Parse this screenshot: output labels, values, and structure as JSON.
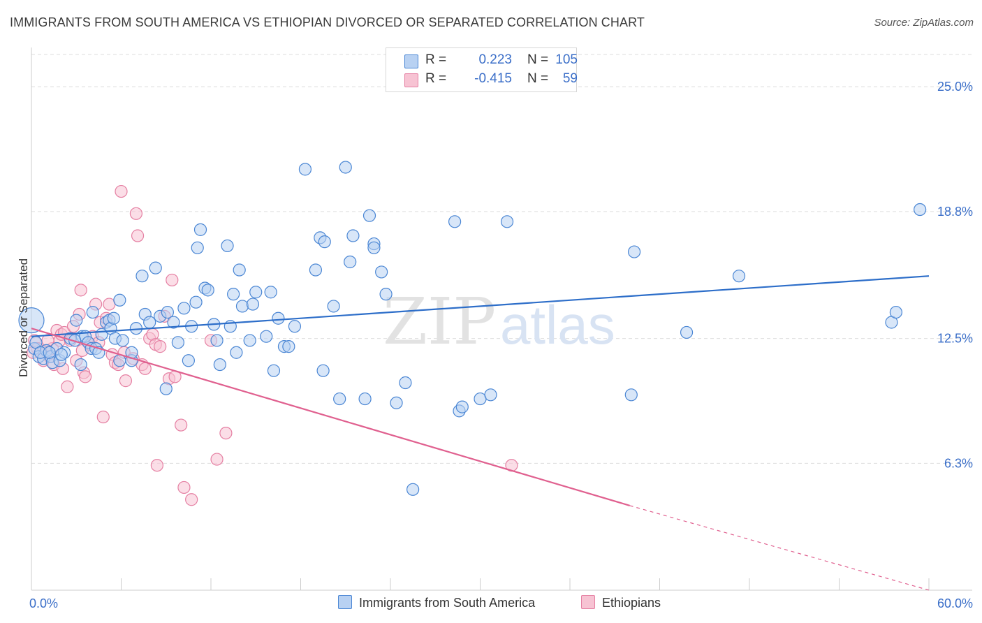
{
  "title": "IMMIGRANTS FROM SOUTH AMERICA VS ETHIOPIAN DIVORCED OR SEPARATED CORRELATION CHART",
  "source": "Source: ZipAtlas.com",
  "watermark": {
    "zip": "ZIP",
    "atlas": "atlas"
  },
  "legend": {
    "rows": [
      {
        "r_label": "R =",
        "r_value": "0.223",
        "n_label": "N =",
        "n_value": "105"
      },
      {
        "r_label": "R =",
        "r_value": "-0.415",
        "n_label": "N =",
        "n_value": "59"
      }
    ]
  },
  "bottom_legend": [
    "Immigrants from South America",
    "Ethiopians"
  ],
  "colors": {
    "blue_fill": "#b8d1f2",
    "blue_stroke": "#4a86d4",
    "blue_line": "#2d6ec9",
    "pink_fill": "#f7c3d3",
    "pink_stroke": "#e57fa2",
    "pink_line": "#e0608f",
    "grid": "#dddddd",
    "tick_label": "#3a6ec8"
  },
  "chart_data": {
    "type": "scatter",
    "title": "IMMIGRANTS FROM SOUTH AMERICA VS ETHIOPIAN DIVORCED OR SEPARATED CORRELATION CHART",
    "xlabel": "",
    "ylabel": "Divorced or Separated",
    "xlim": [
      0,
      60
    ],
    "ylim": [
      0,
      26.6
    ],
    "x_tick_labels": [
      {
        "value": 0,
        "label": "0.0%"
      },
      {
        "value": 60,
        "label": "60.0%"
      }
    ],
    "y_tick_labels": [
      {
        "value": 6.3,
        "label": "6.3%"
      },
      {
        "value": 12.5,
        "label": "12.5%"
      },
      {
        "value": 18.8,
        "label": "18.8%"
      },
      {
        "value": 25.0,
        "label": "25.0%"
      }
    ],
    "series": [
      {
        "name": "Immigrants from South America",
        "R": 0.223,
        "N": 105,
        "trend": {
          "x": [
            0,
            60
          ],
          "y": [
            12.6,
            15.6
          ]
        },
        "points": [
          [
            0.0,
            13.4
          ],
          [
            0.2,
            12.0
          ],
          [
            0.5,
            11.6
          ],
          [
            0.8,
            11.5
          ],
          [
            1.0,
            11.9
          ],
          [
            1.3,
            11.6
          ],
          [
            1.4,
            11.3
          ],
          [
            1.7,
            12.0
          ],
          [
            1.9,
            11.4
          ],
          [
            2.2,
            11.8
          ],
          [
            2.6,
            12.5
          ],
          [
            3.0,
            13.4
          ],
          [
            3.3,
            11.2
          ],
          [
            3.4,
            12.6
          ],
          [
            3.6,
            12.6
          ],
          [
            3.8,
            12.3
          ],
          [
            4.0,
            12.0
          ],
          [
            4.1,
            13.8
          ],
          [
            4.3,
            12.0
          ],
          [
            4.7,
            12.7
          ],
          [
            5.0,
            13.3
          ],
          [
            5.2,
            13.4
          ],
          [
            5.3,
            13.0
          ],
          [
            5.5,
            13.5
          ],
          [
            5.9,
            14.4
          ],
          [
            5.6,
            12.5
          ],
          [
            5.9,
            11.4
          ],
          [
            6.1,
            12.4
          ],
          [
            6.7,
            11.4
          ],
          [
            6.7,
            11.8
          ],
          [
            7.0,
            13.0
          ],
          [
            7.4,
            15.6
          ],
          [
            7.6,
            13.7
          ],
          [
            7.9,
            13.3
          ],
          [
            8.3,
            16.0
          ],
          [
            8.6,
            13.6
          ],
          [
            9.0,
            10.0
          ],
          [
            9.1,
            13.8
          ],
          [
            9.5,
            13.3
          ],
          [
            9.8,
            12.3
          ],
          [
            10.2,
            14.0
          ],
          [
            10.5,
            11.4
          ],
          [
            10.7,
            13.1
          ],
          [
            11.0,
            14.3
          ],
          [
            11.1,
            17.0
          ],
          [
            11.3,
            17.9
          ],
          [
            11.6,
            15.0
          ],
          [
            11.8,
            14.9
          ],
          [
            12.2,
            13.2
          ],
          [
            12.4,
            12.4
          ],
          [
            12.6,
            11.2
          ],
          [
            13.1,
            17.1
          ],
          [
            13.3,
            13.1
          ],
          [
            13.5,
            14.7
          ],
          [
            13.7,
            11.8
          ],
          [
            13.9,
            15.9
          ],
          [
            14.1,
            14.1
          ],
          [
            14.6,
            12.4
          ],
          [
            14.8,
            14.2
          ],
          [
            15.0,
            14.8
          ],
          [
            15.7,
            12.6
          ],
          [
            16.0,
            14.8
          ],
          [
            16.2,
            10.9
          ],
          [
            16.5,
            13.5
          ],
          [
            16.9,
            12.1
          ],
          [
            17.2,
            12.1
          ],
          [
            17.6,
            13.1
          ],
          [
            18.3,
            20.9
          ],
          [
            19.0,
            15.9
          ],
          [
            19.3,
            17.5
          ],
          [
            19.5,
            10.9
          ],
          [
            19.6,
            17.3
          ],
          [
            20.2,
            14.1
          ],
          [
            20.6,
            9.5
          ],
          [
            21.0,
            21.0
          ],
          [
            21.3,
            16.3
          ],
          [
            21.5,
            17.6
          ],
          [
            22.3,
            9.5
          ],
          [
            22.6,
            18.6
          ],
          [
            22.9,
            17.2
          ],
          [
            22.9,
            17.0
          ],
          [
            23.4,
            15.8
          ],
          [
            23.7,
            14.7
          ],
          [
            24.4,
            9.3
          ],
          [
            25.0,
            10.3
          ],
          [
            25.5,
            5.0
          ],
          [
            28.3,
            18.3
          ],
          [
            28.6,
            8.9
          ],
          [
            28.8,
            9.1
          ],
          [
            30.0,
            9.5
          ],
          [
            30.7,
            9.7
          ],
          [
            31.8,
            18.3
          ],
          [
            40.1,
            9.7
          ],
          [
            40.3,
            16.8
          ],
          [
            43.8,
            12.8
          ],
          [
            47.3,
            15.6
          ],
          [
            57.5,
            13.3
          ],
          [
            57.8,
            13.8
          ],
          [
            59.4,
            18.9
          ],
          [
            0.3,
            12.3
          ],
          [
            0.6,
            11.8
          ],
          [
            1.2,
            11.8
          ],
          [
            2.0,
            11.7
          ],
          [
            2.9,
            12.4
          ],
          [
            4.5,
            11.8
          ]
        ]
      },
      {
        "name": "Ethiopians",
        "R": -0.415,
        "N": 59,
        "trend": {
          "x": [
            0,
            40
          ],
          "y": [
            13.0,
            4.2
          ]
        },
        "trend_dashed": {
          "x": [
            40,
            60
          ],
          "y": [
            4.2,
            0.0
          ]
        },
        "points": [
          [
            0.2,
            12.4
          ],
          [
            0.4,
            12.0
          ],
          [
            0.6,
            11.8
          ],
          [
            0.8,
            11.4
          ],
          [
            1.0,
            11.8
          ],
          [
            1.2,
            11.6
          ],
          [
            1.4,
            12.0
          ],
          [
            1.5,
            11.2
          ],
          [
            1.7,
            12.9
          ],
          [
            1.9,
            12.4
          ],
          [
            2.0,
            12.7
          ],
          [
            2.2,
            12.8
          ],
          [
            2.4,
            10.1
          ],
          [
            2.6,
            12.4
          ],
          [
            2.8,
            13.1
          ],
          [
            3.0,
            11.4
          ],
          [
            3.2,
            13.7
          ],
          [
            3.4,
            11.9
          ],
          [
            3.5,
            10.8
          ],
          [
            3.6,
            10.6
          ],
          [
            3.9,
            12.2
          ],
          [
            4.1,
            12.6
          ],
          [
            4.3,
            14.2
          ],
          [
            4.5,
            12.3
          ],
          [
            4.6,
            13.3
          ],
          [
            4.8,
            8.6
          ],
          [
            5.0,
            13.5
          ],
          [
            5.2,
            14.2
          ],
          [
            5.4,
            11.7
          ],
          [
            5.6,
            11.3
          ],
          [
            5.8,
            11.2
          ],
          [
            6.0,
            19.8
          ],
          [
            6.2,
            11.8
          ],
          [
            6.3,
            10.4
          ],
          [
            6.8,
            11.5
          ],
          [
            7.0,
            18.7
          ],
          [
            7.1,
            17.6
          ],
          [
            7.4,
            11.2
          ],
          [
            7.6,
            11.0
          ],
          [
            7.9,
            12.5
          ],
          [
            8.1,
            12.7
          ],
          [
            8.3,
            12.2
          ],
          [
            8.4,
            6.2
          ],
          [
            8.6,
            12.1
          ],
          [
            8.9,
            13.6
          ],
          [
            9.2,
            10.5
          ],
          [
            9.4,
            15.4
          ],
          [
            9.6,
            10.6
          ],
          [
            10.0,
            8.2
          ],
          [
            10.2,
            5.1
          ],
          [
            10.7,
            4.5
          ],
          [
            12.0,
            12.4
          ],
          [
            12.4,
            6.5
          ],
          [
            13.0,
            7.8
          ],
          [
            32.1,
            6.2
          ],
          [
            0.1,
            11.8
          ],
          [
            2.1,
            11.0
          ],
          [
            3.3,
            14.9
          ],
          [
            1.1,
            12.4
          ]
        ]
      }
    ]
  }
}
